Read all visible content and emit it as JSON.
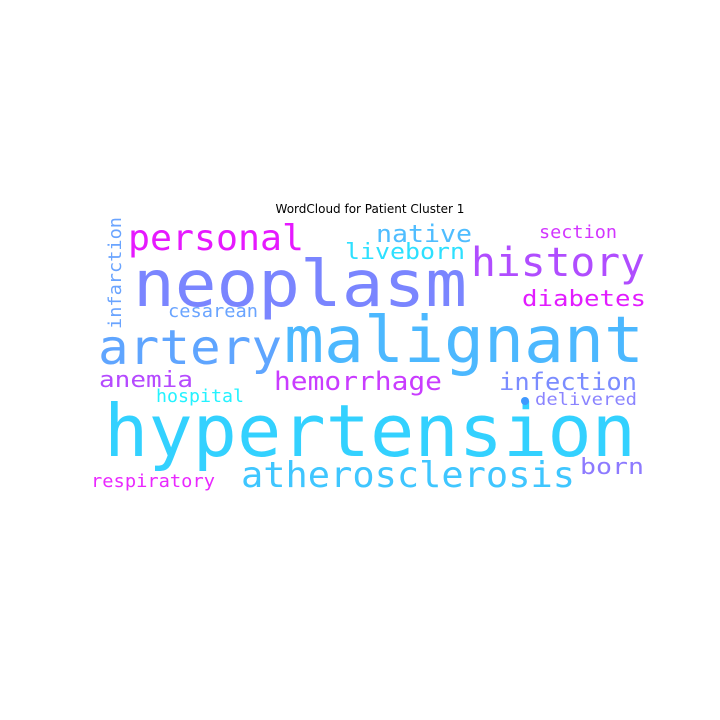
{
  "chart_data": {
    "type": "wordcloud",
    "title": "WordCloud for Patient Cluster 1",
    "words": [
      {
        "text": "hypertension",
        "color": "#33d1ff"
      },
      {
        "text": "malignant",
        "color": "#4cb8ff"
      },
      {
        "text": "neoplasm",
        "color": "#7a85ff"
      },
      {
        "text": "artery",
        "color": "#5fa5ff"
      },
      {
        "text": "atherosclerosis",
        "color": "#3fc6ff"
      },
      {
        "text": "history",
        "color": "#b04dff"
      },
      {
        "text": "personal",
        "color": "#e619ff"
      },
      {
        "text": "hemorrhage",
        "color": "#c93cff"
      },
      {
        "text": "infection",
        "color": "#7b8cff"
      },
      {
        "text": "diabetes",
        "color": "#e21cff"
      },
      {
        "text": "native",
        "color": "#4fbdff"
      },
      {
        "text": "liveborn",
        "color": "#2de0ff"
      },
      {
        "text": "anemia",
        "color": "#b54aff"
      },
      {
        "text": "born",
        "color": "#8d7aff"
      },
      {
        "text": "hospital",
        "color": "#24f2ff"
      },
      {
        "text": "cesarean",
        "color": "#6aa4ff"
      },
      {
        "text": "infarction",
        "color": "#6aa4ff"
      },
      {
        "text": "section",
        "color": "#d235ff"
      },
      {
        "text": "delivered",
        "color": "#8b84ff"
      },
      {
        "text": "respiratory",
        "color": "#e928ff"
      },
      {
        "text": "",
        "color": "#3f98ff"
      }
    ]
  }
}
